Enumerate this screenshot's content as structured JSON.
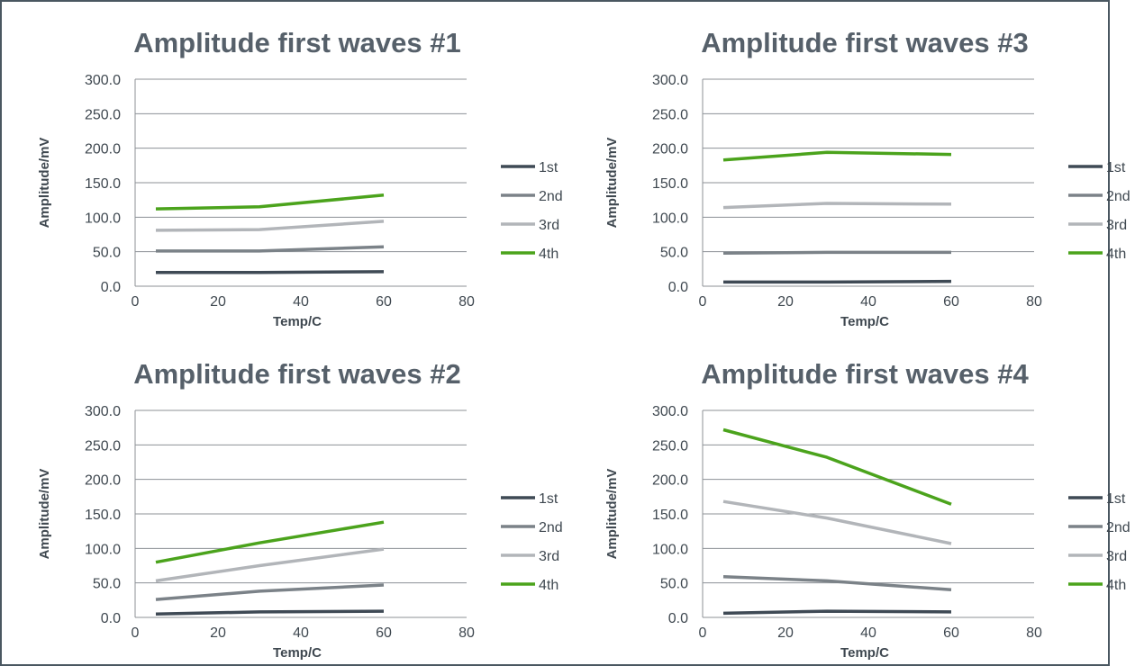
{
  "chart_data": [
    {
      "type": "line",
      "title": "Amplitude first waves #1",
      "xlabel": "Temp/C",
      "ylabel": "Amplitude/mV",
      "xlim": [
        0,
        80
      ],
      "ylim": [
        0,
        300
      ],
      "xticks": [
        "0",
        "20",
        "40",
        "60",
        "80"
      ],
      "yticks": [
        "0.0",
        "50.0",
        "100.0",
        "150.0",
        "200.0",
        "250.0",
        "300.0"
      ],
      "grid": true,
      "legend_position": "right",
      "x": [
        5,
        30,
        60
      ],
      "series": [
        {
          "name": "1st",
          "color": "#3f4a55",
          "values": [
            20,
            20,
            21
          ]
        },
        {
          "name": "2nd",
          "color": "#7b8288",
          "values": [
            51,
            51,
            57
          ]
        },
        {
          "name": "3rd",
          "color": "#b2b5b9",
          "values": [
            81,
            82,
            94
          ]
        },
        {
          "name": "4th",
          "color": "#4ba31c",
          "values": [
            112,
            115,
            132
          ]
        }
      ]
    },
    {
      "type": "line",
      "title": "Amplitude first waves #3",
      "xlabel": "Temp/C",
      "ylabel": "Amplitude/mV",
      "xlim": [
        0,
        80
      ],
      "ylim": [
        0,
        300
      ],
      "xticks": [
        "0",
        "20",
        "40",
        "60",
        "80"
      ],
      "yticks": [
        "0.0",
        "50.0",
        "100.0",
        "150.0",
        "200.0",
        "250.0",
        "300.0"
      ],
      "grid": true,
      "legend_position": "right",
      "x": [
        5,
        30,
        60
      ],
      "series": [
        {
          "name": "1st",
          "color": "#3f4a55",
          "values": [
            6,
            6,
            7
          ]
        },
        {
          "name": "2nd",
          "color": "#7b8288",
          "values": [
            48,
            49,
            49
          ]
        },
        {
          "name": "3rd",
          "color": "#b2b5b9",
          "values": [
            114,
            120,
            119
          ]
        },
        {
          "name": "4th",
          "color": "#4ba31c",
          "values": [
            183,
            194,
            191
          ]
        }
      ]
    },
    {
      "type": "line",
      "title": "Amplitude first waves #2",
      "xlabel": "Temp/C",
      "ylabel": "Amplitude/mV",
      "xlim": [
        0,
        80
      ],
      "ylim": [
        0,
        300
      ],
      "xticks": [
        "0",
        "20",
        "40",
        "60",
        "80"
      ],
      "yticks": [
        "0.0",
        "50.0",
        "100.0",
        "150.0",
        "200.0",
        "250.0",
        "300.0"
      ],
      "grid": true,
      "legend_position": "right",
      "x": [
        5,
        30,
        60
      ],
      "series": [
        {
          "name": "1st",
          "color": "#3f4a55",
          "values": [
            5,
            8,
            9
          ]
        },
        {
          "name": "2nd",
          "color": "#7b8288",
          "values": [
            26,
            38,
            47
          ]
        },
        {
          "name": "3rd",
          "color": "#b2b5b9",
          "values": [
            53,
            75,
            99
          ]
        },
        {
          "name": "4th",
          "color": "#4ba31c",
          "values": [
            80,
            108,
            138
          ]
        }
      ]
    },
    {
      "type": "line",
      "title": "Amplitude first waves #4",
      "xlabel": "Temp/C",
      "ylabel": "Amplitude/mV",
      "xlim": [
        0,
        80
      ],
      "ylim": [
        0,
        300
      ],
      "xticks": [
        "0",
        "20",
        "40",
        "60",
        "80"
      ],
      "yticks": [
        "0.0",
        "50.0",
        "100.0",
        "150.0",
        "200.0",
        "250.0",
        "300.0"
      ],
      "grid": true,
      "legend_position": "right",
      "x": [
        5,
        30,
        60
      ],
      "series": [
        {
          "name": "1st",
          "color": "#3f4a55",
          "values": [
            6,
            9,
            8
          ]
        },
        {
          "name": "2nd",
          "color": "#7b8288",
          "values": [
            59,
            53,
            40
          ]
        },
        {
          "name": "3rd",
          "color": "#b2b5b9",
          "values": [
            168,
            144,
            107
          ]
        },
        {
          "name": "4th",
          "color": "#4ba31c",
          "values": [
            272,
            232,
            164
          ]
        }
      ]
    }
  ]
}
